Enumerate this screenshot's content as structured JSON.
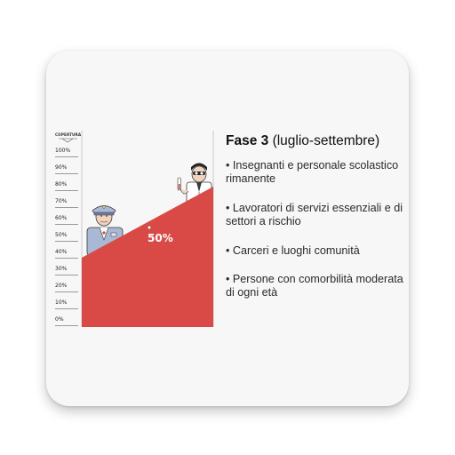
{
  "coverage_label": "COPERTURA",
  "scale_ticks": [
    "100%",
    "90%",
    "80%",
    "70%",
    "60%",
    "50%",
    "40%",
    "30%",
    "20%",
    "10%",
    "0%"
  ],
  "level_label": "50%",
  "colors": {
    "fill": "#d94a46",
    "background": "#f7f7f7"
  },
  "icons": [
    "police-officer-icon",
    "doctor-with-thermometer-icon"
  ],
  "info": {
    "title_bold": "Fase 3",
    "title_rest": " (luglio-settembre)",
    "bullets": [
      "• Insegnanti e personale scolastico rimanente",
      "• Lavoratori di servizi essenziali e di settori a rischio",
      "• Carceri e luoghi comunità",
      "• Persone con comorbilità moderata di ogni età"
    ]
  }
}
